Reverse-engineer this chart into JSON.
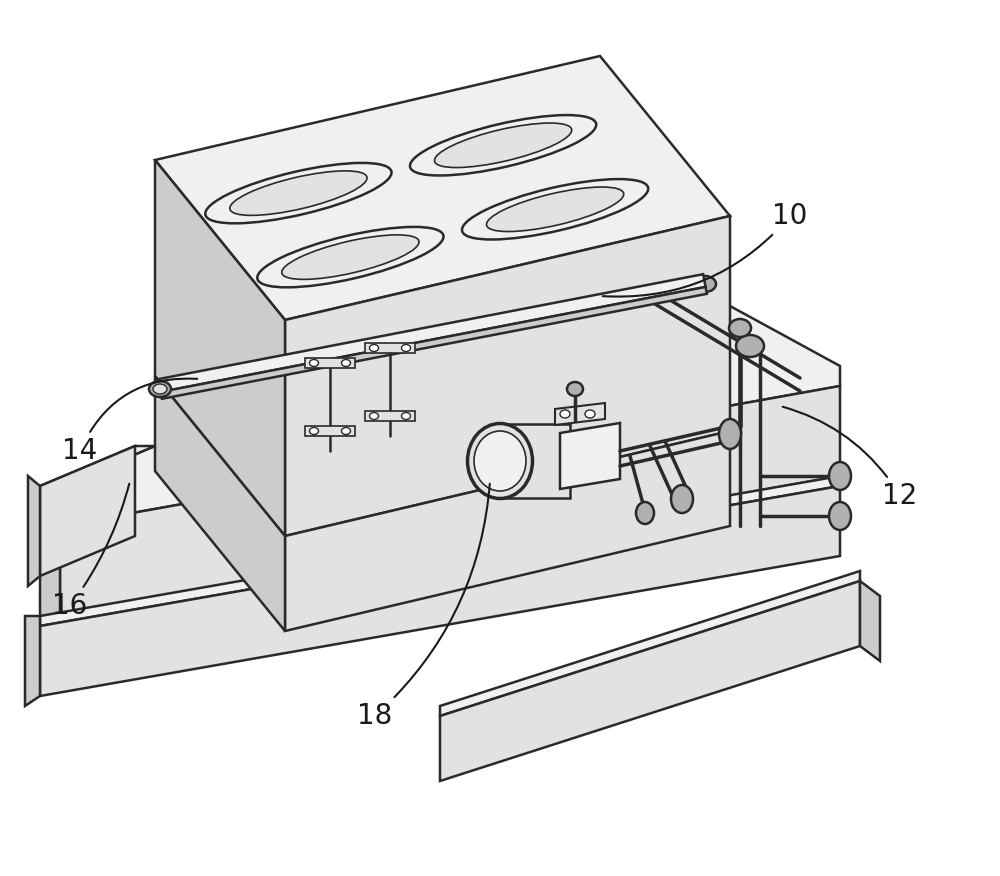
{
  "background_color": "#ffffff",
  "line_color": "#2a2a2a",
  "fill_white": "#ffffff",
  "fill_vlight": "#f0f0f0",
  "fill_light": "#e2e2e2",
  "fill_medium": "#cccccc",
  "fill_dark": "#b0b0b0",
  "fill_darker": "#989898",
  "label_fontsize": 20,
  "figure_width": 10.0,
  "figure_height": 8.76
}
